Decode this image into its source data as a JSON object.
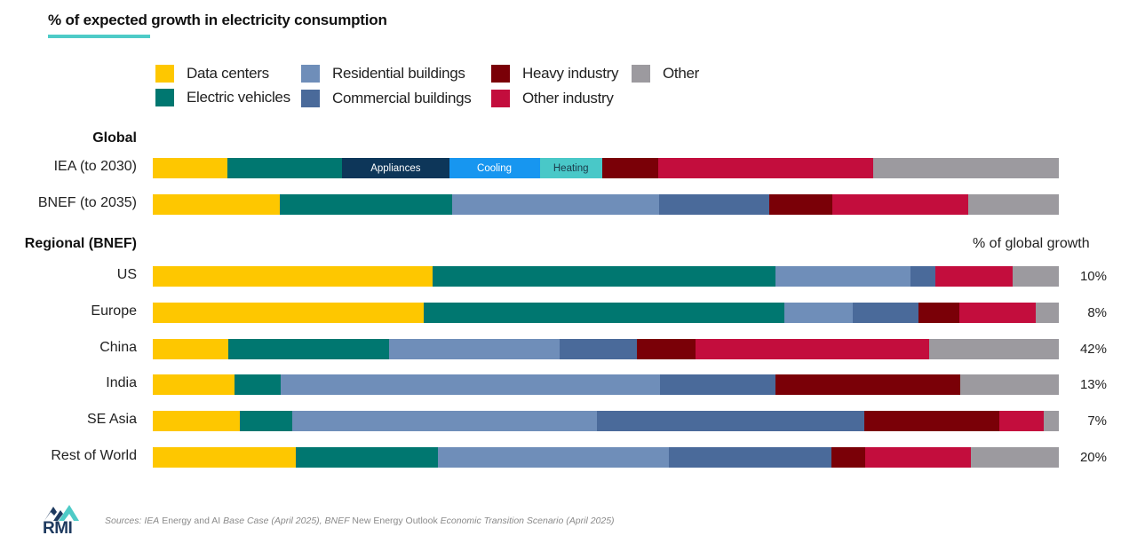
{
  "title": "% of expected growth in electricity consumption",
  "colors": {
    "data_centers": "#fec700",
    "electric_vehicles": "#007770",
    "residential_buildings": "#6f8eb9",
    "commercial_buildings": "#4a6a9a",
    "heavy_industry": "#7a0007",
    "other_industry": "#c30d3d",
    "other": "#9c9a9f",
    "appliances": "#0d3659",
    "cooling": "#1796f0",
    "heating": "#49c8c8",
    "accent_underline": "#4ecbc7"
  },
  "legend": [
    {
      "key": "data_centers",
      "label": "Data centers"
    },
    {
      "key": "electric_vehicles",
      "label": "Electric vehicles"
    },
    {
      "key": "residential_buildings",
      "label": "Residential buildings"
    },
    {
      "key": "commercial_buildings",
      "label": "Commercial buildings"
    },
    {
      "key": "heavy_industry",
      "label": "Heavy industry"
    },
    {
      "key": "other_industry",
      "label": "Other industry"
    },
    {
      "key": "other",
      "label": "Other"
    }
  ],
  "groups": {
    "global": "Global",
    "regional": "Regional (BNEF)"
  },
  "share_header": "% of global growth",
  "chart_data": {
    "type": "bar",
    "orientation": "horizontal",
    "stacked": "100%",
    "title": "% of expected growth in electricity consumption",
    "xlabel": "",
    "ylabel": "",
    "xlim": [
      0,
      100
    ],
    "grid": false,
    "legend_position": "top",
    "categories": [
      "IEA (to 2030)",
      "BNEF (to 2035)",
      "US",
      "Europe",
      "China",
      "India",
      "SE Asia",
      "Rest of World"
    ],
    "rows": [
      {
        "label": "IEA (to 2030)",
        "group": "Global",
        "segments": [
          {
            "key": "data_centers",
            "name": "Data centers",
            "value": 8.2
          },
          {
            "key": "electric_vehicles",
            "name": "Electric vehicles",
            "value": 12.7
          },
          {
            "key": "appliances",
            "name": "Appliances",
            "value": 11.8,
            "label": "Appliances"
          },
          {
            "key": "cooling",
            "name": "Cooling",
            "value": 10.0,
            "label": "Cooling"
          },
          {
            "key": "heating",
            "name": "Heating",
            "value": 6.9,
            "label": "Heating"
          },
          {
            "key": "heavy_industry",
            "name": "Heavy industry",
            "value": 6.2
          },
          {
            "key": "other_industry",
            "name": "Other industry",
            "value": 23.7
          },
          {
            "key": "other",
            "name": "Other",
            "value": 20.5
          }
        ]
      },
      {
        "label": "BNEF (to 2035)",
        "group": "Global",
        "segments": [
          {
            "key": "data_centers",
            "name": "Data centers",
            "value": 14.0
          },
          {
            "key": "electric_vehicles",
            "name": "Electric vehicles",
            "value": 19.0
          },
          {
            "key": "residential_buildings",
            "name": "Residential buildings",
            "value": 22.9
          },
          {
            "key": "commercial_buildings",
            "name": "Commercial buildings",
            "value": 12.1
          },
          {
            "key": "heavy_industry",
            "name": "Heavy industry",
            "value": 7.0
          },
          {
            "key": "other_industry",
            "name": "Other industry",
            "value": 15.0
          },
          {
            "key": "other",
            "name": "Other",
            "value": 10.0
          }
        ]
      },
      {
        "label": "US",
        "group": "Regional (BNEF)",
        "share": "10%",
        "segments": [
          {
            "key": "data_centers",
            "name": "Data centers",
            "value": 30.9
          },
          {
            "key": "electric_vehicles",
            "name": "Electric vehicles",
            "value": 37.8
          },
          {
            "key": "residential_buildings",
            "name": "Residential buildings",
            "value": 14.8
          },
          {
            "key": "commercial_buildings",
            "name": "Commercial buildings",
            "value": 2.8
          },
          {
            "key": "heavy_industry",
            "name": "Heavy industry",
            "value": 0
          },
          {
            "key": "other_industry",
            "name": "Other industry",
            "value": 8.5
          },
          {
            "key": "other",
            "name": "Other",
            "value": 5.1
          }
        ]
      },
      {
        "label": "Europe",
        "group": "Regional (BNEF)",
        "share": "8%",
        "segments": [
          {
            "key": "data_centers",
            "name": "Data centers",
            "value": 29.9
          },
          {
            "key": "electric_vehicles",
            "name": "Electric vehicles",
            "value": 39.7
          },
          {
            "key": "residential_buildings",
            "name": "Residential buildings",
            "value": 7.6
          },
          {
            "key": "commercial_buildings",
            "name": "Commercial buildings",
            "value": 7.2
          },
          {
            "key": "heavy_industry",
            "name": "Heavy industry",
            "value": 4.5
          },
          {
            "key": "other_industry",
            "name": "Other industry",
            "value": 8.5
          },
          {
            "key": "other",
            "name": "Other",
            "value": 2.5
          }
        ]
      },
      {
        "label": "China",
        "group": "Regional (BNEF)",
        "share": "42%",
        "segments": [
          {
            "key": "data_centers",
            "name": "Data centers",
            "value": 8.3
          },
          {
            "key": "electric_vehicles",
            "name": "Electric vehicles",
            "value": 17.8
          },
          {
            "key": "residential_buildings",
            "name": "Residential buildings",
            "value": 18.8
          },
          {
            "key": "commercial_buildings",
            "name": "Commercial buildings",
            "value": 8.5
          },
          {
            "key": "heavy_industry",
            "name": "Heavy industry",
            "value": 6.4
          },
          {
            "key": "other_industry",
            "name": "Other industry",
            "value": 25.8
          },
          {
            "key": "other",
            "name": "Other",
            "value": 14.3
          }
        ]
      },
      {
        "label": "India",
        "group": "Regional (BNEF)",
        "share": "13%",
        "segments": [
          {
            "key": "data_centers",
            "name": "Data centers",
            "value": 9.0
          },
          {
            "key": "electric_vehicles",
            "name": "Electric vehicles",
            "value": 5.1
          },
          {
            "key": "residential_buildings",
            "name": "Residential buildings",
            "value": 41.9
          },
          {
            "key": "commercial_buildings",
            "name": "Commercial buildings",
            "value": 12.7
          },
          {
            "key": "heavy_industry",
            "name": "Heavy industry",
            "value": 20.4
          },
          {
            "key": "other_industry",
            "name": "Other industry",
            "value": 0
          },
          {
            "key": "other",
            "name": "Other",
            "value": 10.9
          }
        ]
      },
      {
        "label": "SE Asia",
        "group": "Regional (BNEF)",
        "share": "7%",
        "segments": [
          {
            "key": "data_centers",
            "name": "Data centers",
            "value": 9.6
          },
          {
            "key": "electric_vehicles",
            "name": "Electric vehicles",
            "value": 5.8
          },
          {
            "key": "residential_buildings",
            "name": "Residential buildings",
            "value": 33.6
          },
          {
            "key": "commercial_buildings",
            "name": "Commercial buildings",
            "value": 29.5
          },
          {
            "key": "heavy_industry",
            "name": "Heavy industry",
            "value": 14.9
          },
          {
            "key": "other_industry",
            "name": "Other industry",
            "value": 4.9
          },
          {
            "key": "other",
            "name": "Other",
            "value": 1.7
          }
        ]
      },
      {
        "label": "Rest of World",
        "group": "Regional (BNEF)",
        "share": "20%",
        "segments": [
          {
            "key": "data_centers",
            "name": "Data centers",
            "value": 15.8
          },
          {
            "key": "electric_vehicles",
            "name": "Electric vehicles",
            "value": 15.7
          },
          {
            "key": "residential_buildings",
            "name": "Residential buildings",
            "value": 25.5
          },
          {
            "key": "commercial_buildings",
            "name": "Commercial buildings",
            "value": 17.9
          },
          {
            "key": "heavy_industry",
            "name": "Heavy industry",
            "value": 3.7
          },
          {
            "key": "other_industry",
            "name": "Other industry",
            "value": 11.7
          },
          {
            "key": "other",
            "name": "Other",
            "value": 9.7
          }
        ]
      }
    ]
  },
  "footer": {
    "logo_text": "RMI",
    "sources_prefix": "Sources: ",
    "sources_parts": [
      {
        "text": "IEA",
        "italic": true
      },
      {
        "text": " Energy and AI ",
        "italic": false
      },
      {
        "text": "Base Case (April 2025), BNEF",
        "italic": true
      },
      {
        "text": " New Energy Outlook ",
        "italic": false
      },
      {
        "text": "Economic Transition Scenario (April 2025)",
        "italic": true
      }
    ]
  }
}
